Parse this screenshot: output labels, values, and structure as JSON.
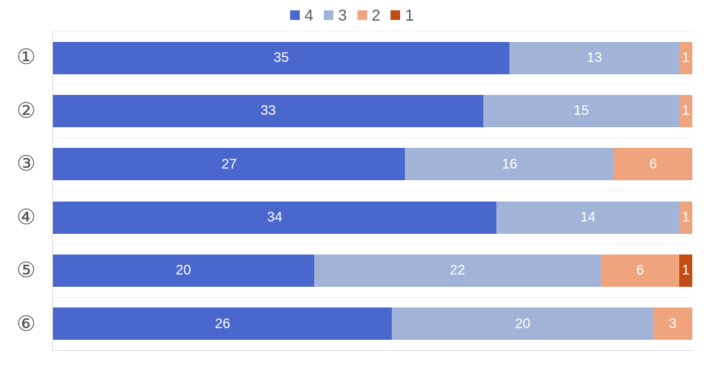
{
  "chart_data": {
    "type": "bar",
    "orientation": "horizontal",
    "stacked": true,
    "title": "",
    "xlabel": "",
    "ylabel": "",
    "categories": [
      "①",
      "②",
      "③",
      "④",
      "⑤",
      "⑥"
    ],
    "series": [
      {
        "name": "4",
        "color": "#4A67CE",
        "values": [
          35,
          33,
          27,
          34,
          20,
          26
        ]
      },
      {
        "name": "3",
        "color": "#A1B4D8",
        "values": [
          13,
          15,
          16,
          14,
          22,
          20
        ]
      },
      {
        "name": "2",
        "color": "#F0A47E",
        "values": [
          1,
          1,
          6,
          1,
          6,
          3
        ]
      },
      {
        "name": "1",
        "color": "#C04E14",
        "values": [
          0,
          0,
          0,
          0,
          1,
          0
        ]
      }
    ],
    "total_per_bar": 49,
    "xlim": [
      0,
      49
    ],
    "grid": "faint horizontal lines at category boundaries, left and bottom axis lines only",
    "legend_position": "top-center",
    "value_labels": "white numerals centered in each segment, zero-value segments hidden"
  },
  "legend": {
    "items": [
      {
        "label": "4",
        "color": "#4A67CE"
      },
      {
        "label": "3",
        "color": "#A1B4D8"
      },
      {
        "label": "2",
        "color": "#F0A47E"
      },
      {
        "label": "1",
        "color": "#C04E14"
      }
    ]
  },
  "colors": {
    "background": "#FFFFFF",
    "axis_line": "#D9D9D9",
    "gridline": "#F1F1F1",
    "category_label_text": "#555555",
    "legend_text": "#595959",
    "value_label_text": "#FFFFFF"
  }
}
